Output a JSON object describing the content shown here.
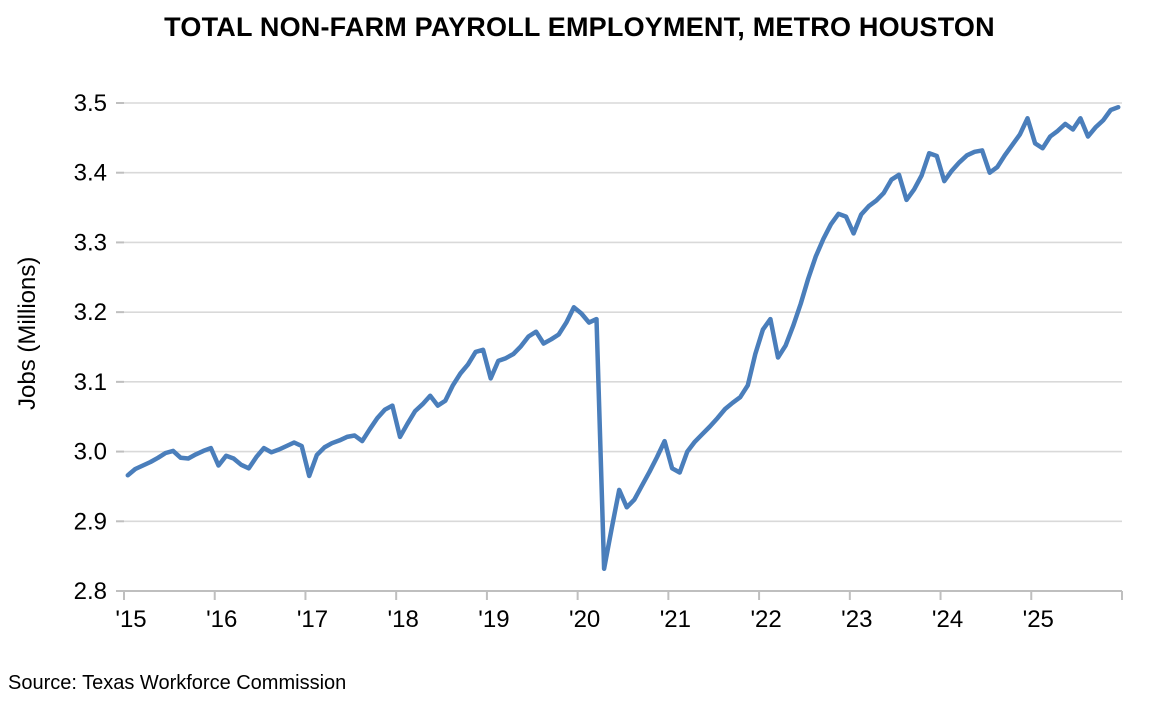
{
  "title": "TOTAL NON-FARM PAYROLL EMPLOYMENT, METRO HOUSTON",
  "source": "Source: Texas Workforce Commission",
  "colors": {
    "line": "#4A7EBB",
    "gridline": "#D9D9D9",
    "axis": "#BFBFBF",
    "text": "#000000",
    "background": "#FFFFFF"
  },
  "chart_data": {
    "type": "line",
    "title": "TOTAL NON-FARM PAYROLL EMPLOYMENT, METRO HOUSTON",
    "xlabel": "",
    "ylabel": "Jobs (Millions)",
    "ylim": [
      2.8,
      3.5
    ],
    "y_ticks": [
      2.8,
      2.9,
      3.0,
      3.1,
      3.2,
      3.3,
      3.4,
      3.5
    ],
    "x_tick_labels": [
      "'15",
      "'16",
      "'17",
      "'18",
      "'19",
      "'20",
      "'21",
      "'22",
      "'23",
      "'24",
      "'25"
    ],
    "grid": "horizontal",
    "legend": "none",
    "frequency": "monthly",
    "start": "2015-01",
    "end": "2025-12",
    "series": [
      {
        "name": "Total non-farm payroll employment, Metro Houston (millions of jobs)",
        "values": [
          2.966,
          2.975,
          2.98,
          2.985,
          2.991,
          2.998,
          3.001,
          2.991,
          2.99,
          2.996,
          3.001,
          3.005,
          2.98,
          2.994,
          2.99,
          2.981,
          2.976,
          2.992,
          3.005,
          2.999,
          3.003,
          3.008,
          3.013,
          3.008,
          2.965,
          2.995,
          3.006,
          3.012,
          3.016,
          3.021,
          3.023,
          3.015,
          3.032,
          3.048,
          3.06,
          3.066,
          3.021,
          3.04,
          3.058,
          3.068,
          3.08,
          3.066,
          3.073,
          3.095,
          3.112,
          3.125,
          3.143,
          3.146,
          3.105,
          3.13,
          3.134,
          3.14,
          3.151,
          3.165,
          3.172,
          3.155,
          3.161,
          3.168,
          3.185,
          3.207,
          3.198,
          3.185,
          3.19,
          2.832,
          2.89,
          2.945,
          2.92,
          2.931,
          2.951,
          2.971,
          2.992,
          3.015,
          2.976,
          2.97,
          3.0,
          3.014,
          3.025,
          3.036,
          3.048,
          3.061,
          3.07,
          3.078,
          3.095,
          3.14,
          3.175,
          3.19,
          3.135,
          3.152,
          3.18,
          3.212,
          3.248,
          3.28,
          3.305,
          3.326,
          3.341,
          3.337,
          3.313,
          3.34,
          3.352,
          3.36,
          3.371,
          3.39,
          3.397,
          3.361,
          3.376,
          3.396,
          3.428,
          3.424,
          3.388,
          3.403,
          3.415,
          3.425,
          3.43,
          3.432,
          3.4,
          3.408,
          3.425,
          3.44,
          3.455,
          3.478,
          3.442,
          3.435,
          3.452,
          3.46,
          3.47,
          3.462,
          3.478,
          3.452,
          3.465,
          3.475,
          3.49,
          3.494
        ]
      }
    ]
  }
}
